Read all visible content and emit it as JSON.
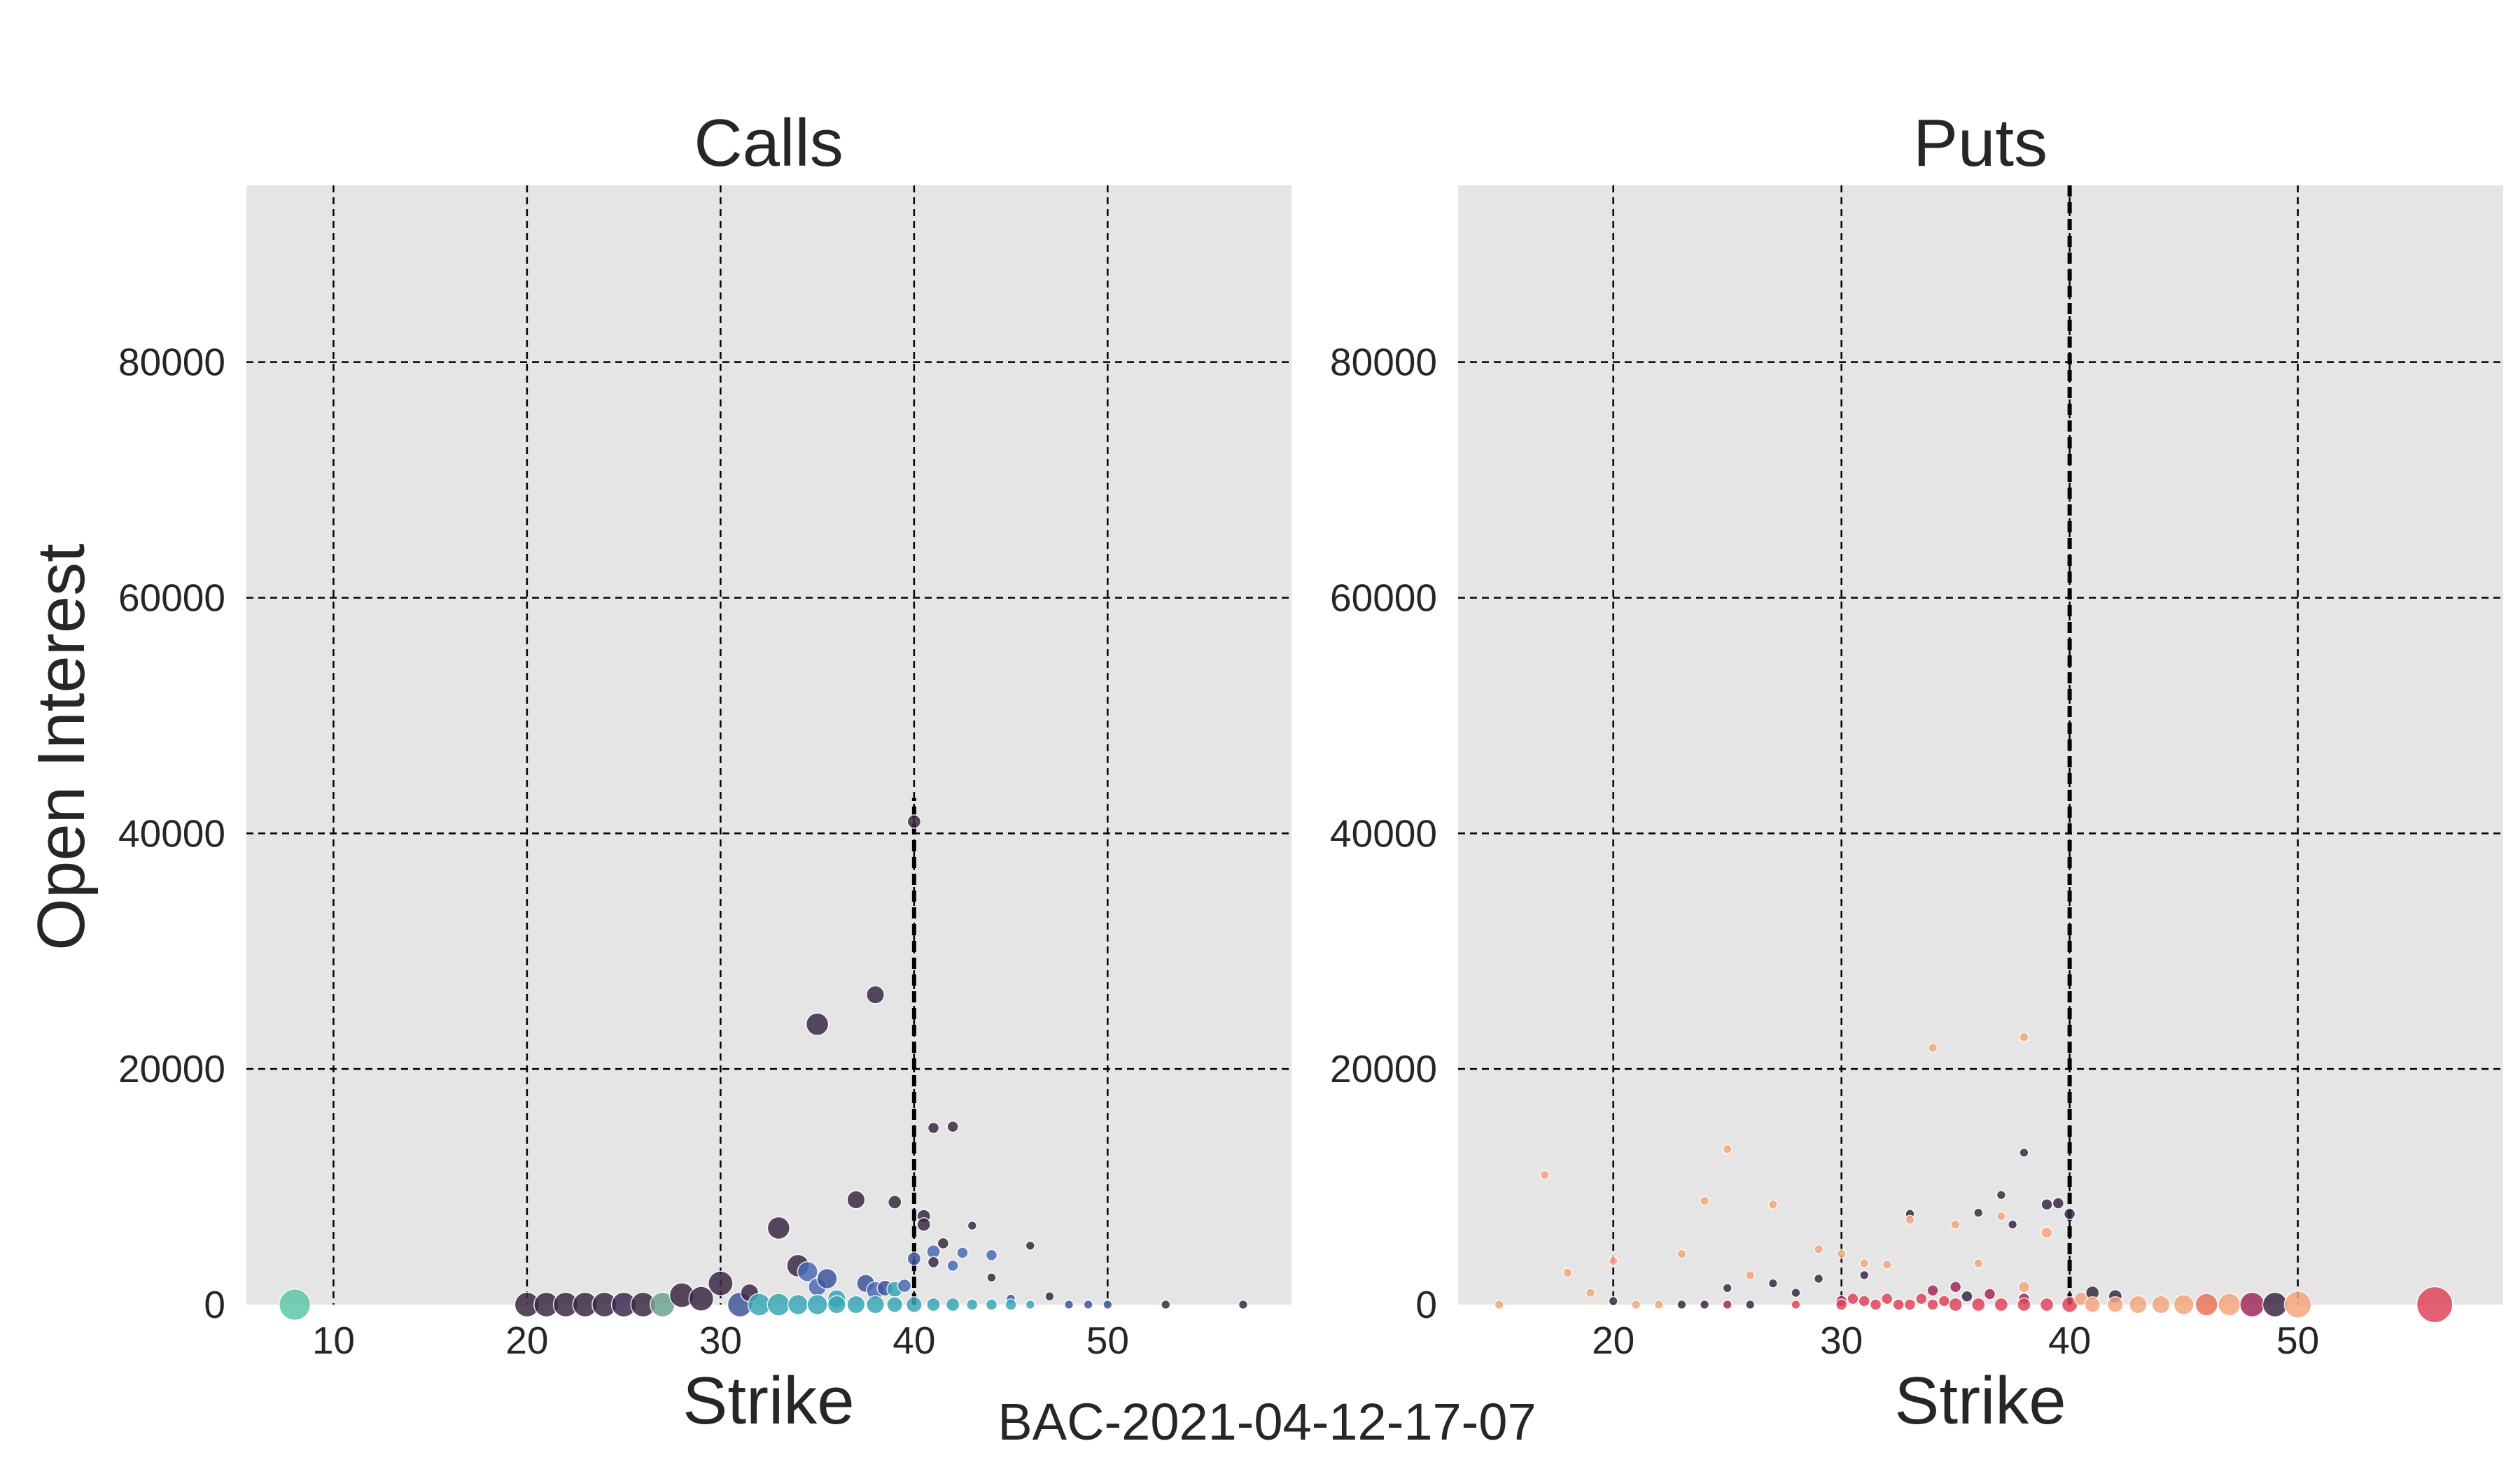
{
  "figure": {
    "footer": "BAC-2021-04-12-17-07",
    "ylabel": "Open Interest"
  },
  "chart_data": [
    {
      "type": "scatter",
      "title": "Calls",
      "xlabel": "Strike",
      "ylabel": "Open Interest",
      "xlim": [
        5.5,
        59.5
      ],
      "ylim": [
        0,
        95000
      ],
      "xticks": [
        10,
        20,
        30,
        40,
        50
      ],
      "yticks": [
        0,
        20000,
        40000,
        60000,
        80000
      ],
      "grid": true,
      "reference_line": {
        "x": 40,
        "y_range": [
          0,
          43000
        ]
      },
      "points": [
        {
          "x": 8,
          "y": 0,
          "r": 14,
          "color": "#5fc6a7"
        },
        {
          "x": 20,
          "y": 0,
          "r": 11,
          "color": "#3b2a45"
        },
        {
          "x": 21,
          "y": 0,
          "r": 11,
          "color": "#3b2a45"
        },
        {
          "x": 22,
          "y": 0,
          "r": 11,
          "color": "#3b2a45"
        },
        {
          "x": 23,
          "y": 0,
          "r": 11,
          "color": "#3b2a45"
        },
        {
          "x": 24,
          "y": 0,
          "r": 11,
          "color": "#3b2a45"
        },
        {
          "x": 25,
          "y": 0,
          "r": 11,
          "color": "#3a2b52"
        },
        {
          "x": 26,
          "y": 0,
          "r": 11,
          "color": "#3b2a45"
        },
        {
          "x": 27,
          "y": 0,
          "r": 11,
          "color": "#6fa38f"
        },
        {
          "x": 28,
          "y": 800,
          "r": 11,
          "color": "#3b2a45"
        },
        {
          "x": 29,
          "y": 500,
          "r": 11,
          "color": "#3b2a45"
        },
        {
          "x": 30,
          "y": 1800,
          "r": 11,
          "color": "#3b2a45"
        },
        {
          "x": 31,
          "y": 0,
          "r": 11,
          "color": "#41569b"
        },
        {
          "x": 31.5,
          "y": 1000,
          "r": 8,
          "color": "#3b2a45"
        },
        {
          "x": 32,
          "y": 0,
          "r": 10,
          "color": "#3aa6b4"
        },
        {
          "x": 33,
          "y": 6500,
          "r": 10,
          "color": "#3b2a45"
        },
        {
          "x": 33,
          "y": 0,
          "r": 10,
          "color": "#3aa6b4"
        },
        {
          "x": 34,
          "y": 3300,
          "r": 10,
          "color": "#3b2a45"
        },
        {
          "x": 34.5,
          "y": 2800,
          "r": 9,
          "color": "#4c6ab5"
        },
        {
          "x": 34,
          "y": 0,
          "r": 9,
          "color": "#3aa6b4"
        },
        {
          "x": 35,
          "y": 23800,
          "r": 10,
          "color": "#3b2a45"
        },
        {
          "x": 35,
          "y": 1500,
          "r": 8,
          "color": "#4c6ab5"
        },
        {
          "x": 35,
          "y": 0,
          "r": 9,
          "color": "#3aa6b4"
        },
        {
          "x": 35.5,
          "y": 2200,
          "r": 9,
          "color": "#41569b"
        },
        {
          "x": 36,
          "y": 500,
          "r": 8,
          "color": "#3aa6b4"
        },
        {
          "x": 36,
          "y": 0,
          "r": 8,
          "color": "#3aa6b4"
        },
        {
          "x": 37,
          "y": 8900,
          "r": 8,
          "color": "#3b2a45"
        },
        {
          "x": 37,
          "y": 0,
          "r": 8,
          "color": "#3aa6b4"
        },
        {
          "x": 37.5,
          "y": 1800,
          "r": 8,
          "color": "#41569b"
        },
        {
          "x": 38,
          "y": 26300,
          "r": 8,
          "color": "#3b2a45"
        },
        {
          "x": 38,
          "y": 1200,
          "r": 8,
          "color": "#4c6ab5"
        },
        {
          "x": 38,
          "y": 0,
          "r": 8,
          "color": "#3aa6b4"
        },
        {
          "x": 38.5,
          "y": 1400,
          "r": 7,
          "color": "#41569b"
        },
        {
          "x": 39,
          "y": 8700,
          "r": 6,
          "color": "#3b2a45"
        },
        {
          "x": 39,
          "y": 1300,
          "r": 7,
          "color": "#3aa6b4"
        },
        {
          "x": 39,
          "y": 0,
          "r": 7,
          "color": "#3aa6b4"
        },
        {
          "x": 39.5,
          "y": 1600,
          "r": 6,
          "color": "#4c6ab5"
        },
        {
          "x": 40,
          "y": 41000,
          "r": 6,
          "color": "#3b2a45"
        },
        {
          "x": 40,
          "y": 3900,
          "r": 6,
          "color": "#41569b"
        },
        {
          "x": 40,
          "y": 0,
          "r": 7,
          "color": "#3aa6b4"
        },
        {
          "x": 40.5,
          "y": 7500,
          "r": 6,
          "color": "#3b2a45"
        },
        {
          "x": 40.5,
          "y": 6800,
          "r": 6,
          "color": "#3b2a45"
        },
        {
          "x": 41,
          "y": 15000,
          "r": 5,
          "color": "#3b2a45"
        },
        {
          "x": 41,
          "y": 4500,
          "r": 6,
          "color": "#4c6ab5"
        },
        {
          "x": 41,
          "y": 3600,
          "r": 5,
          "color": "#3b2a45"
        },
        {
          "x": 41,
          "y": 0,
          "r": 6,
          "color": "#3aa6b4"
        },
        {
          "x": 41.5,
          "y": 5200,
          "r": 5,
          "color": "#3b2a45"
        },
        {
          "x": 42,
          "y": 15100,
          "r": 5,
          "color": "#3b2a45"
        },
        {
          "x": 42,
          "y": 3300,
          "r": 5,
          "color": "#4c6ab5"
        },
        {
          "x": 42,
          "y": 0,
          "r": 6,
          "color": "#3aa6b4"
        },
        {
          "x": 42.5,
          "y": 4400,
          "r": 5,
          "color": "#4c6ab5"
        },
        {
          "x": 43,
          "y": 6700,
          "r": 4,
          "color": "#3b2a45"
        },
        {
          "x": 43,
          "y": 0,
          "r": 5,
          "color": "#3aa6b4"
        },
        {
          "x": 44,
          "y": 4200,
          "r": 5,
          "color": "#4c6ab5"
        },
        {
          "x": 44,
          "y": 2300,
          "r": 4,
          "color": "#3b2a45"
        },
        {
          "x": 44,
          "y": 0,
          "r": 5,
          "color": "#3aa6b4"
        },
        {
          "x": 45,
          "y": 500,
          "r": 4,
          "color": "#41569b"
        },
        {
          "x": 45,
          "y": 0,
          "r": 5,
          "color": "#3aa6b4"
        },
        {
          "x": 46,
          "y": 5000,
          "r": 4,
          "color": "#3b2a45"
        },
        {
          "x": 46,
          "y": 0,
          "r": 4,
          "color": "#3aa6b4"
        },
        {
          "x": 47,
          "y": 700,
          "r": 4,
          "color": "#3b2a45"
        },
        {
          "x": 48,
          "y": 0,
          "r": 4,
          "color": "#41569b"
        },
        {
          "x": 49,
          "y": 0,
          "r": 4,
          "color": "#41569b"
        },
        {
          "x": 50,
          "y": 0,
          "r": 4,
          "color": "#41569b"
        },
        {
          "x": 53,
          "y": 0,
          "r": 4,
          "color": "#3b2a45"
        },
        {
          "x": 57,
          "y": 0,
          "r": 4,
          "color": "#3b2a45"
        }
      ]
    },
    {
      "type": "scatter",
      "title": "Puts",
      "xlabel": "Strike",
      "ylabel": "",
      "xlim": [
        13.2,
        59.0
      ],
      "ylim": [
        0,
        95000
      ],
      "xticks": [
        20,
        30,
        40,
        50
      ],
      "yticks": [
        0,
        20000,
        40000,
        60000,
        80000
      ],
      "grid": true,
      "reference_line": {
        "x": 40,
        "y_range": [
          0,
          95000
        ]
      },
      "points": [
        {
          "x": 15,
          "y": 0,
          "r": 4,
          "color": "#f5a67c"
        },
        {
          "x": 17,
          "y": 11000,
          "r": 4,
          "color": "#f5a67c"
        },
        {
          "x": 18,
          "y": 2700,
          "r": 4,
          "color": "#f5a67c"
        },
        {
          "x": 19,
          "y": 1000,
          "r": 4,
          "color": "#f5a67c"
        },
        {
          "x": 20,
          "y": 3700,
          "r": 4,
          "color": "#f5a67c"
        },
        {
          "x": 20,
          "y": 300,
          "r": 4,
          "color": "#3b2a45"
        },
        {
          "x": 21,
          "y": 0,
          "r": 4,
          "color": "#f5a67c"
        },
        {
          "x": 22,
          "y": 0,
          "r": 4,
          "color": "#f5a67c"
        },
        {
          "x": 23,
          "y": 4300,
          "r": 4,
          "color": "#f5a67c"
        },
        {
          "x": 23,
          "y": 0,
          "r": 4,
          "color": "#3b2a45"
        },
        {
          "x": 24,
          "y": 8800,
          "r": 4,
          "color": "#f5a67c"
        },
        {
          "x": 24,
          "y": 0,
          "r": 4,
          "color": "#3b2a45"
        },
        {
          "x": 25,
          "y": 13200,
          "r": 4,
          "color": "#f5a67c"
        },
        {
          "x": 25,
          "y": 1400,
          "r": 4,
          "color": "#3b2a45"
        },
        {
          "x": 25,
          "y": 0,
          "r": 4,
          "color": "#a12a5e"
        },
        {
          "x": 26,
          "y": 2500,
          "r": 4,
          "color": "#f5a67c"
        },
        {
          "x": 26,
          "y": 0,
          "r": 4,
          "color": "#3b2a45"
        },
        {
          "x": 27,
          "y": 8500,
          "r": 4,
          "color": "#f5a67c"
        },
        {
          "x": 27,
          "y": 1800,
          "r": 4,
          "color": "#3b2a45"
        },
        {
          "x": 28,
          "y": 1000,
          "r": 4,
          "color": "#3b2a45"
        },
        {
          "x": 28,
          "y": 0,
          "r": 4,
          "color": "#e0455c"
        },
        {
          "x": 29,
          "y": 4700,
          "r": 4,
          "color": "#f5a67c"
        },
        {
          "x": 29,
          "y": 2200,
          "r": 4,
          "color": "#3b2a45"
        },
        {
          "x": 30,
          "y": 4300,
          "r": 4,
          "color": "#f5a67c"
        },
        {
          "x": 30,
          "y": 300,
          "r": 5,
          "color": "#a12a5e"
        },
        {
          "x": 30,
          "y": 0,
          "r": 5,
          "color": "#e0455c"
        },
        {
          "x": 30.5,
          "y": 500,
          "r": 5,
          "color": "#e0455c"
        },
        {
          "x": 31,
          "y": 3500,
          "r": 4,
          "color": "#f5a67c"
        },
        {
          "x": 31,
          "y": 2500,
          "r": 4,
          "color": "#3b2a45"
        },
        {
          "x": 31,
          "y": 300,
          "r": 5,
          "color": "#e0455c"
        },
        {
          "x": 31.5,
          "y": 0,
          "r": 5,
          "color": "#e0455c"
        },
        {
          "x": 32,
          "y": 3400,
          "r": 4,
          "color": "#f5a67c"
        },
        {
          "x": 32,
          "y": 500,
          "r": 5,
          "color": "#e0455c"
        },
        {
          "x": 32.5,
          "y": 0,
          "r": 5,
          "color": "#e0455c"
        },
        {
          "x": 33,
          "y": 7700,
          "r": 4,
          "color": "#3b2a45"
        },
        {
          "x": 33,
          "y": 7200,
          "r": 4,
          "color": "#f5a67c"
        },
        {
          "x": 33,
          "y": 0,
          "r": 5,
          "color": "#e0455c"
        },
        {
          "x": 33.5,
          "y": 500,
          "r": 5,
          "color": "#e0455c"
        },
        {
          "x": 34,
          "y": 21800,
          "r": 4,
          "color": "#f5a67c"
        },
        {
          "x": 34,
          "y": 1200,
          "r": 5,
          "color": "#a12a5e"
        },
        {
          "x": 34,
          "y": 0,
          "r": 5,
          "color": "#e0455c"
        },
        {
          "x": 34.5,
          "y": 300,
          "r": 5,
          "color": "#e0455c"
        },
        {
          "x": 35,
          "y": 6800,
          "r": 4,
          "color": "#f5a67c"
        },
        {
          "x": 35,
          "y": 1500,
          "r": 5,
          "color": "#a12a5e"
        },
        {
          "x": 35,
          "y": 0,
          "r": 6,
          "color": "#e0455c"
        },
        {
          "x": 35.5,
          "y": 700,
          "r": 5,
          "color": "#3b2a45"
        },
        {
          "x": 36,
          "y": 7800,
          "r": 4,
          "color": "#3b2a45"
        },
        {
          "x": 36,
          "y": 3500,
          "r": 4,
          "color": "#f5a67c"
        },
        {
          "x": 36,
          "y": 0,
          "r": 6,
          "color": "#e0455c"
        },
        {
          "x": 36.5,
          "y": 900,
          "r": 5,
          "color": "#a12a5e"
        },
        {
          "x": 37,
          "y": 9300,
          "r": 4,
          "color": "#3b2a45"
        },
        {
          "x": 37,
          "y": 7500,
          "r": 4,
          "color": "#f5a67c"
        },
        {
          "x": 37,
          "y": 0,
          "r": 6,
          "color": "#e0455c"
        },
        {
          "x": 37.5,
          "y": 6800,
          "r": 4,
          "color": "#3b2a45"
        },
        {
          "x": 38,
          "y": 22700,
          "r": 4,
          "color": "#f5a67c"
        },
        {
          "x": 38,
          "y": 12900,
          "r": 4,
          "color": "#3b2a45"
        },
        {
          "x": 38,
          "y": 1500,
          "r": 5,
          "color": "#f5a67c"
        },
        {
          "x": 38,
          "y": 500,
          "r": 5,
          "color": "#a12a5e"
        },
        {
          "x": 38,
          "y": 0,
          "r": 6,
          "color": "#e0455c"
        },
        {
          "x": 39,
          "y": 8500,
          "r": 5,
          "color": "#3b2a45"
        },
        {
          "x": 39,
          "y": 6100,
          "r": 5,
          "color": "#f5a67c"
        },
        {
          "x": 39.5,
          "y": 8600,
          "r": 5,
          "color": "#3b2a45"
        },
        {
          "x": 39,
          "y": 0,
          "r": 6,
          "color": "#e0455c"
        },
        {
          "x": 40,
          "y": 7700,
          "r": 5,
          "color": "#3b2a45"
        },
        {
          "x": 40,
          "y": 0,
          "r": 7,
          "color": "#e0455c"
        },
        {
          "x": 40.5,
          "y": 500,
          "r": 6,
          "color": "#f5a67c"
        },
        {
          "x": 41,
          "y": 1000,
          "r": 6,
          "color": "#3b2a45"
        },
        {
          "x": 41,
          "y": 0,
          "r": 7,
          "color": "#f5a67c"
        },
        {
          "x": 42,
          "y": 700,
          "r": 6,
          "color": "#3b2a45"
        },
        {
          "x": 42,
          "y": 0,
          "r": 7,
          "color": "#f5a67c"
        },
        {
          "x": 43,
          "y": 0,
          "r": 8,
          "color": "#f5a67c"
        },
        {
          "x": 44,
          "y": 0,
          "r": 8,
          "color": "#f5a67c"
        },
        {
          "x": 45,
          "y": 0,
          "r": 9,
          "color": "#f5a67c"
        },
        {
          "x": 46,
          "y": 0,
          "r": 10,
          "color": "#e9755b"
        },
        {
          "x": 47,
          "y": 0,
          "r": 10,
          "color": "#f5a67c"
        },
        {
          "x": 48,
          "y": 0,
          "r": 11,
          "color": "#a12a5e"
        },
        {
          "x": 49,
          "y": 0,
          "r": 11,
          "color": "#3b2a45"
        },
        {
          "x": 50,
          "y": 0,
          "r": 12,
          "color": "#f5a67c"
        },
        {
          "x": 56,
          "y": 0,
          "r": 16,
          "color": "#e0455c"
        }
      ]
    }
  ]
}
